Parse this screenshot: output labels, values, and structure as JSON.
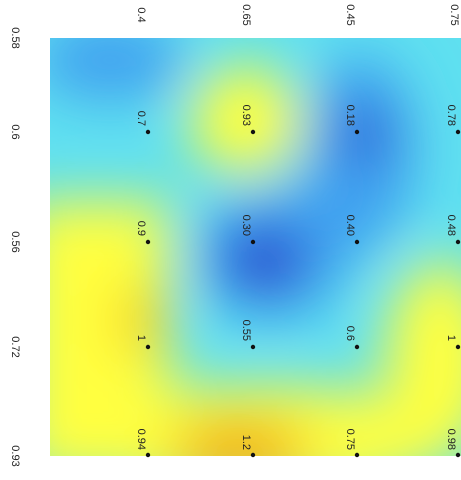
{
  "chart_data": {
    "type": "heatmap",
    "orientation": "rotated-90",
    "title": "",
    "xlabel": "",
    "ylabel": "",
    "colors": {
      "low": "#3a3ad8",
      "mid_low": "#3fa0f0",
      "mid": "#5fe0f0",
      "mid_high": "#ffff40",
      "high": "#f0a000"
    },
    "axis_labels": [
      "0.58",
      "0.6",
      "0.56",
      "0.72",
      "0.93"
    ],
    "column_labels": [
      "0.4",
      "0.65",
      "0.45",
      "0.75"
    ],
    "points": [
      {
        "row": 0,
        "col": 0,
        "label": "0.4"
      },
      {
        "row": 0,
        "col": 1,
        "label": "0.65"
      },
      {
        "row": 0,
        "col": 2,
        "label": "0.45"
      },
      {
        "row": 0,
        "col": 3,
        "label": "0.75"
      },
      {
        "row": 1,
        "col": 0,
        "label": "0.7"
      },
      {
        "row": 1,
        "col": 1,
        "label": "0.93"
      },
      {
        "row": 1,
        "col": 2,
        "label": "0.18"
      },
      {
        "row": 1,
        "col": 3,
        "label": "0.78"
      },
      {
        "row": 2,
        "col": 0,
        "label": "0.9"
      },
      {
        "row": 2,
        "col": 1,
        "label": "0.30"
      },
      {
        "row": 2,
        "col": 2,
        "label": "0.40"
      },
      {
        "row": 2,
        "col": 3,
        "label": "0.48"
      },
      {
        "row": 3,
        "col": 0,
        "label": "1"
      },
      {
        "row": 3,
        "col": 1,
        "label": "0.55"
      },
      {
        "row": 3,
        "col": 2,
        "label": "0.6"
      },
      {
        "row": 3,
        "col": 3,
        "label": "1"
      },
      {
        "row": 4,
        "col": 0,
        "label": "0.94"
      },
      {
        "row": 4,
        "col": 1,
        "label": "1.2"
      },
      {
        "row": 4,
        "col": 2,
        "label": "0.75"
      },
      {
        "row": 4,
        "col": 3,
        "label": "0.98"
      }
    ]
  }
}
